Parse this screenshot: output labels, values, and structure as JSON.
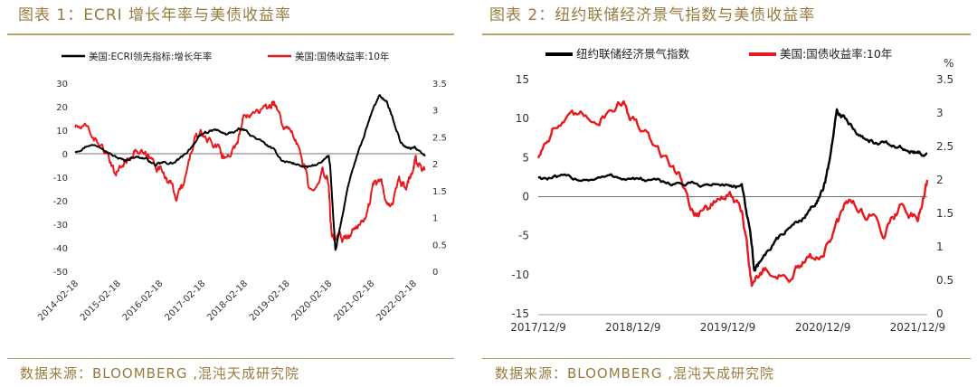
{
  "figures": [
    {
      "title": "图表 1：ECRI 增长年率与美债收益率",
      "source": "数据来源：BLOOMBERG ,混沌天成研究院"
    },
    {
      "title": "图表 2：纽约联储经济景气指数与美债收益率",
      "source": "数据来源：BLOOMBERG ,混沌天成研究院"
    }
  ],
  "chart_data": [
    {
      "type": "line",
      "legend_placement": "top",
      "grid": false,
      "x_tick_labels": [
        "2014-02-18",
        "2015-02-18",
        "2016-02-18",
        "2017-02-18",
        "2018-02-18",
        "2019-02-18",
        "2020-02-18",
        "2021-02-18",
        "2022-02-18"
      ],
      "xlim": [
        "2014-02-18",
        "2022-05-31"
      ],
      "y_left": {
        "ylim": [
          -50,
          30
        ],
        "ticks": [
          "30",
          "20",
          "10",
          "0",
          "-10",
          "-20",
          "-30",
          "-40",
          "-50"
        ]
      },
      "y_right": {
        "ylim": [
          0,
          3.5
        ],
        "ticks": [
          "3.5",
          "3",
          "2.5",
          "2",
          "1.5",
          "1",
          "0.5",
          "0"
        ]
      },
      "series": [
        {
          "name": "美国:ECRI领先指标:增长年率",
          "axis": "left",
          "color": "#000000",
          "points": [
            [
              "2014-02-18",
              1
            ],
            [
              "2014-06-18",
              4
            ],
            [
              "2014-10-18",
              3
            ],
            [
              "2015-01-18",
              -1
            ],
            [
              "2015-04-18",
              -3
            ],
            [
              "2015-07-18",
              -1
            ],
            [
              "2015-10-18",
              -2
            ],
            [
              "2016-01-18",
              -5
            ],
            [
              "2016-03-18",
              -4
            ],
            [
              "2016-06-18",
              -4
            ],
            [
              "2016-09-18",
              -1
            ],
            [
              "2016-12-18",
              5
            ],
            [
              "2017-03-18",
              9
            ],
            [
              "2017-06-18",
              10
            ],
            [
              "2017-09-18",
              8
            ],
            [
              "2017-12-18",
              10
            ],
            [
              "2018-02-18",
              10
            ],
            [
              "2018-06-18",
              6
            ],
            [
              "2018-10-18",
              2
            ],
            [
              "2019-01-18",
              -3
            ],
            [
              "2019-04-18",
              -4
            ],
            [
              "2019-08-18",
              -6
            ],
            [
              "2019-12-18",
              -4
            ],
            [
              "2020-02-18",
              -1
            ],
            [
              "2020-03-01",
              -5
            ],
            [
              "2020-04-15",
              -42
            ],
            [
              "2020-06-01",
              -30
            ],
            [
              "2020-08-01",
              -14
            ],
            [
              "2020-10-01",
              -4
            ],
            [
              "2020-12-01",
              5
            ],
            [
              "2021-03-01",
              18
            ],
            [
              "2021-05-01",
              25
            ],
            [
              "2021-07-01",
              22
            ],
            [
              "2021-09-01",
              14
            ],
            [
              "2021-11-01",
              5
            ],
            [
              "2022-01-01",
              2
            ],
            [
              "2022-03-01",
              3
            ],
            [
              "2022-05-31",
              -1
            ]
          ]
        },
        {
          "name": "美国:国债收益率:10年",
          "axis": "right",
          "color": "#e8191c",
          "points": [
            [
              "2014-02-18",
              2.7
            ],
            [
              "2014-06-18",
              2.6
            ],
            [
              "2014-10-18",
              2.3
            ],
            [
              "2015-01-18",
              1.8
            ],
            [
              "2015-04-18",
              2.0
            ],
            [
              "2015-07-18",
              2.3
            ],
            [
              "2015-10-18",
              2.1
            ],
            [
              "2016-01-18",
              2.0
            ],
            [
              "2016-04-18",
              1.8
            ],
            [
              "2016-07-08",
              1.4
            ],
            [
              "2016-09-18",
              1.6
            ],
            [
              "2016-12-18",
              2.5
            ],
            [
              "2017-03-18",
              2.5
            ],
            [
              "2017-07-18",
              2.3
            ],
            [
              "2017-09-08",
              2.1
            ],
            [
              "2017-12-18",
              2.4
            ],
            [
              "2018-02-18",
              2.9
            ],
            [
              "2018-05-18",
              3.1
            ],
            [
              "2018-09-18",
              3.0
            ],
            [
              "2018-11-08",
              3.2
            ],
            [
              "2019-01-18",
              2.7
            ],
            [
              "2019-04-18",
              2.5
            ],
            [
              "2019-07-18",
              2.0
            ],
            [
              "2019-09-01",
              1.5
            ],
            [
              "2019-12-18",
              1.9
            ],
            [
              "2020-02-18",
              1.6
            ],
            [
              "2020-03-15",
              0.6
            ],
            [
              "2020-05-18",
              0.7
            ],
            [
              "2020-08-01",
              0.6
            ],
            [
              "2020-10-18",
              0.8
            ],
            [
              "2021-01-18",
              1.1
            ],
            [
              "2021-03-18",
              1.7
            ],
            [
              "2021-05-18",
              1.6
            ],
            [
              "2021-08-01",
              1.2
            ],
            [
              "2021-10-18",
              1.6
            ],
            [
              "2021-12-18",
              1.5
            ],
            [
              "2022-02-18",
              1.9
            ],
            [
              "2022-03-15",
              2.1
            ],
            [
              "2022-05-31",
              1.9
            ]
          ]
        }
      ]
    },
    {
      "type": "line",
      "legend_placement": "top",
      "grid": false,
      "x_tick_labels": [
        "2017/12/9",
        "2018/12/9",
        "2019/12/9",
        "2020/12/9",
        "2021/12/9"
      ],
      "xlim": [
        "2017-12-09",
        "2022-01-15"
      ],
      "y_left": {
        "ylim": [
          -15,
          15
        ],
        "ticks": [
          "15",
          "10",
          "5",
          "0",
          "-5",
          "-10",
          "-15"
        ]
      },
      "y_right": {
        "ylim": [
          0,
          3.5
        ],
        "unit": "%",
        "ticks": [
          "3.5",
          "3",
          "2.5",
          "2",
          "1.5",
          "1",
          "0.5",
          "0"
        ]
      },
      "series": [
        {
          "name": "纽约联储经济景气指数",
          "axis": "left",
          "color": "#000000",
          "points": [
            [
              "2017-12-09",
              2.5
            ],
            [
              "2018-03-01",
              2.3
            ],
            [
              "2018-06-01",
              2.3
            ],
            [
              "2018-09-01",
              2.5
            ],
            [
              "2018-12-09",
              2.4
            ],
            [
              "2019-03-01",
              1.8
            ],
            [
              "2019-06-01",
              1.7
            ],
            [
              "2019-09-01",
              1.5
            ],
            [
              "2019-12-09",
              1.5
            ],
            [
              "2020-02-01",
              1.2
            ],
            [
              "2020-03-05",
              -5
            ],
            [
              "2020-03-20",
              -9.5
            ],
            [
              "2020-04-15",
              -8
            ],
            [
              "2020-06-01",
              -6
            ],
            [
              "2020-08-01",
              -4
            ],
            [
              "2020-10-01",
              -2.5
            ],
            [
              "2020-11-15",
              -0.5
            ],
            [
              "2020-12-09",
              0.5
            ],
            [
              "2021-01-01",
              4
            ],
            [
              "2021-02-01",
              11
            ],
            [
              "2021-03-01",
              10
            ],
            [
              "2021-05-01",
              8
            ],
            [
              "2021-07-01",
              7
            ],
            [
              "2021-09-01",
              6.5
            ],
            [
              "2021-11-01",
              6
            ],
            [
              "2021-12-09",
              5.5
            ],
            [
              "2022-01-15",
              5.5
            ]
          ]
        },
        {
          "name": "美国:国债收益率:10年",
          "axis": "right",
          "color": "#e8191c",
          "points": [
            [
              "2017-12-09",
              2.35
            ],
            [
              "2018-02-01",
              2.8
            ],
            [
              "2018-05-01",
              2.9
            ],
            [
              "2018-08-01",
              2.95
            ],
            [
              "2018-11-01",
              3.2
            ],
            [
              "2018-12-09",
              2.9
            ],
            [
              "2019-03-01",
              2.5
            ],
            [
              "2019-06-01",
              2.1
            ],
            [
              "2019-08-01",
              1.5
            ],
            [
              "2019-10-01",
              1.6
            ],
            [
              "2019-12-09",
              1.8
            ],
            [
              "2020-02-01",
              1.5
            ],
            [
              "2020-03-10",
              0.5
            ],
            [
              "2020-05-01",
              0.65
            ],
            [
              "2020-08-01",
              0.55
            ],
            [
              "2020-10-01",
              0.75
            ],
            [
              "2020-12-09",
              0.9
            ],
            [
              "2021-02-01",
              1.3
            ],
            [
              "2021-03-20",
              1.7
            ],
            [
              "2021-06-01",
              1.5
            ],
            [
              "2021-08-01",
              1.25
            ],
            [
              "2021-10-01",
              1.6
            ],
            [
              "2021-12-09",
              1.45
            ],
            [
              "2022-01-15",
              2.0
            ]
          ]
        }
      ]
    }
  ]
}
